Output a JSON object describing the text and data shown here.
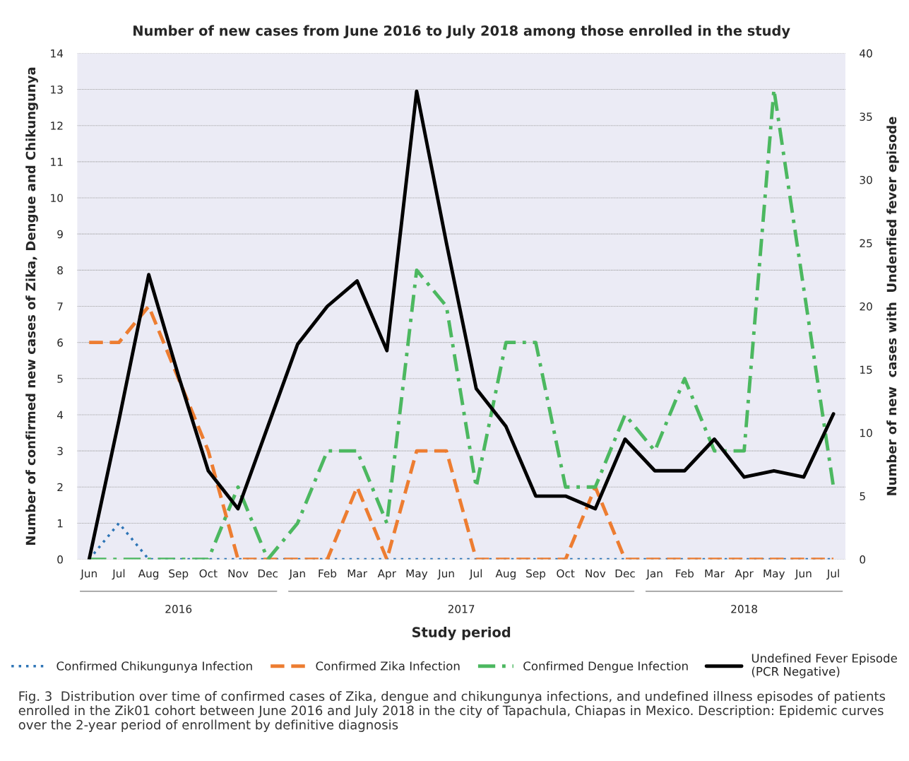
{
  "chart_data": {
    "type": "line",
    "title": "Number of new cases from June 2016 to July 2018 among those enrolled in the study",
    "xlabel": "Study period",
    "ylabel": "Number of confirmed new cases of Zika, Dengue and Chikungunya",
    "y2label": "Number of new  cases with  Undenfied fever episode",
    "categories": [
      "Jun",
      "Jul",
      "Aug",
      "Sep",
      "Oct",
      "Nov",
      "Dec",
      "Jan",
      "Feb",
      "Mar",
      "Apr",
      "May",
      "Jun",
      "Jul",
      "Aug",
      "Sep",
      "Oct",
      "Nov",
      "Dec",
      "Jan",
      "Feb",
      "Mar",
      "Apr",
      "May",
      "Jun",
      "Jul"
    ],
    "series": [
      {
        "name": "Confirmed Chikungunya Infection",
        "color": "#2e75b6",
        "line_style": "dotted",
        "values": [
          0,
          1,
          0,
          0,
          0,
          0,
          0,
          0,
          0,
          0,
          0,
          0,
          0,
          0,
          0,
          0,
          0,
          0,
          0,
          0,
          0,
          0,
          0,
          0,
          0,
          0
        ]
      },
      {
        "name": "Confirmed Zika Infection",
        "color": "#ed7d31",
        "line_style": "dashed",
        "values": [
          6,
          6,
          7,
          5,
          3,
          0,
          0,
          0,
          0,
          2,
          0,
          3,
          3,
          0,
          0,
          0,
          0,
          2,
          0,
          0,
          0,
          0,
          0,
          0,
          0,
          0
        ]
      },
      {
        "name": "Confirmed Dengue Infection",
        "color": "#4cb860",
        "line_style": "dashdot",
        "values": [
          0,
          0,
          0,
          0,
          0,
          2,
          0,
          1,
          3,
          3,
          1,
          8,
          7,
          2,
          6,
          6,
          2,
          2,
          4,
          3,
          5,
          3,
          3,
          13,
          7.5,
          2
        ]
      },
      {
        "name": "Undefined Fever Episode\n(PCR Negative)",
        "color": "#000000",
        "line_style": "solid",
        "axis": "y2",
        "values": [
          0,
          11,
          22.5,
          14.5,
          7,
          4,
          10.5,
          17,
          20,
          22,
          16.5,
          37,
          25,
          13.5,
          10.5,
          5,
          5,
          4,
          9.5,
          7,
          7,
          9.5,
          6.5,
          7,
          6.5,
          11.5
        ]
      }
    ],
    "ylim": [
      0,
      14
    ],
    "yticks": [
      0,
      1,
      2,
      3,
      4,
      5,
      6,
      7,
      8,
      9,
      10,
      11,
      12,
      13,
      14
    ],
    "y2lim": [
      0,
      40
    ],
    "y2ticks": [
      0,
      5,
      10,
      15,
      20,
      25,
      30,
      35,
      40
    ],
    "grid": "y",
    "legend": "bottom",
    "annotations": [
      "2016",
      "2017",
      "2018",
      "Fig. 3  Distribution over time of confirmed cases of Zika, dengue and chikungunya infections, and undefined illness episodes of patients enrolled in the Zik01 cohort between June 2016 and July 2018 in the city of Tapachula, Chiapas in Mexico. Description: Epidemic curves over the 2-year period of enrollment by definitive diagnosis"
    ]
  }
}
